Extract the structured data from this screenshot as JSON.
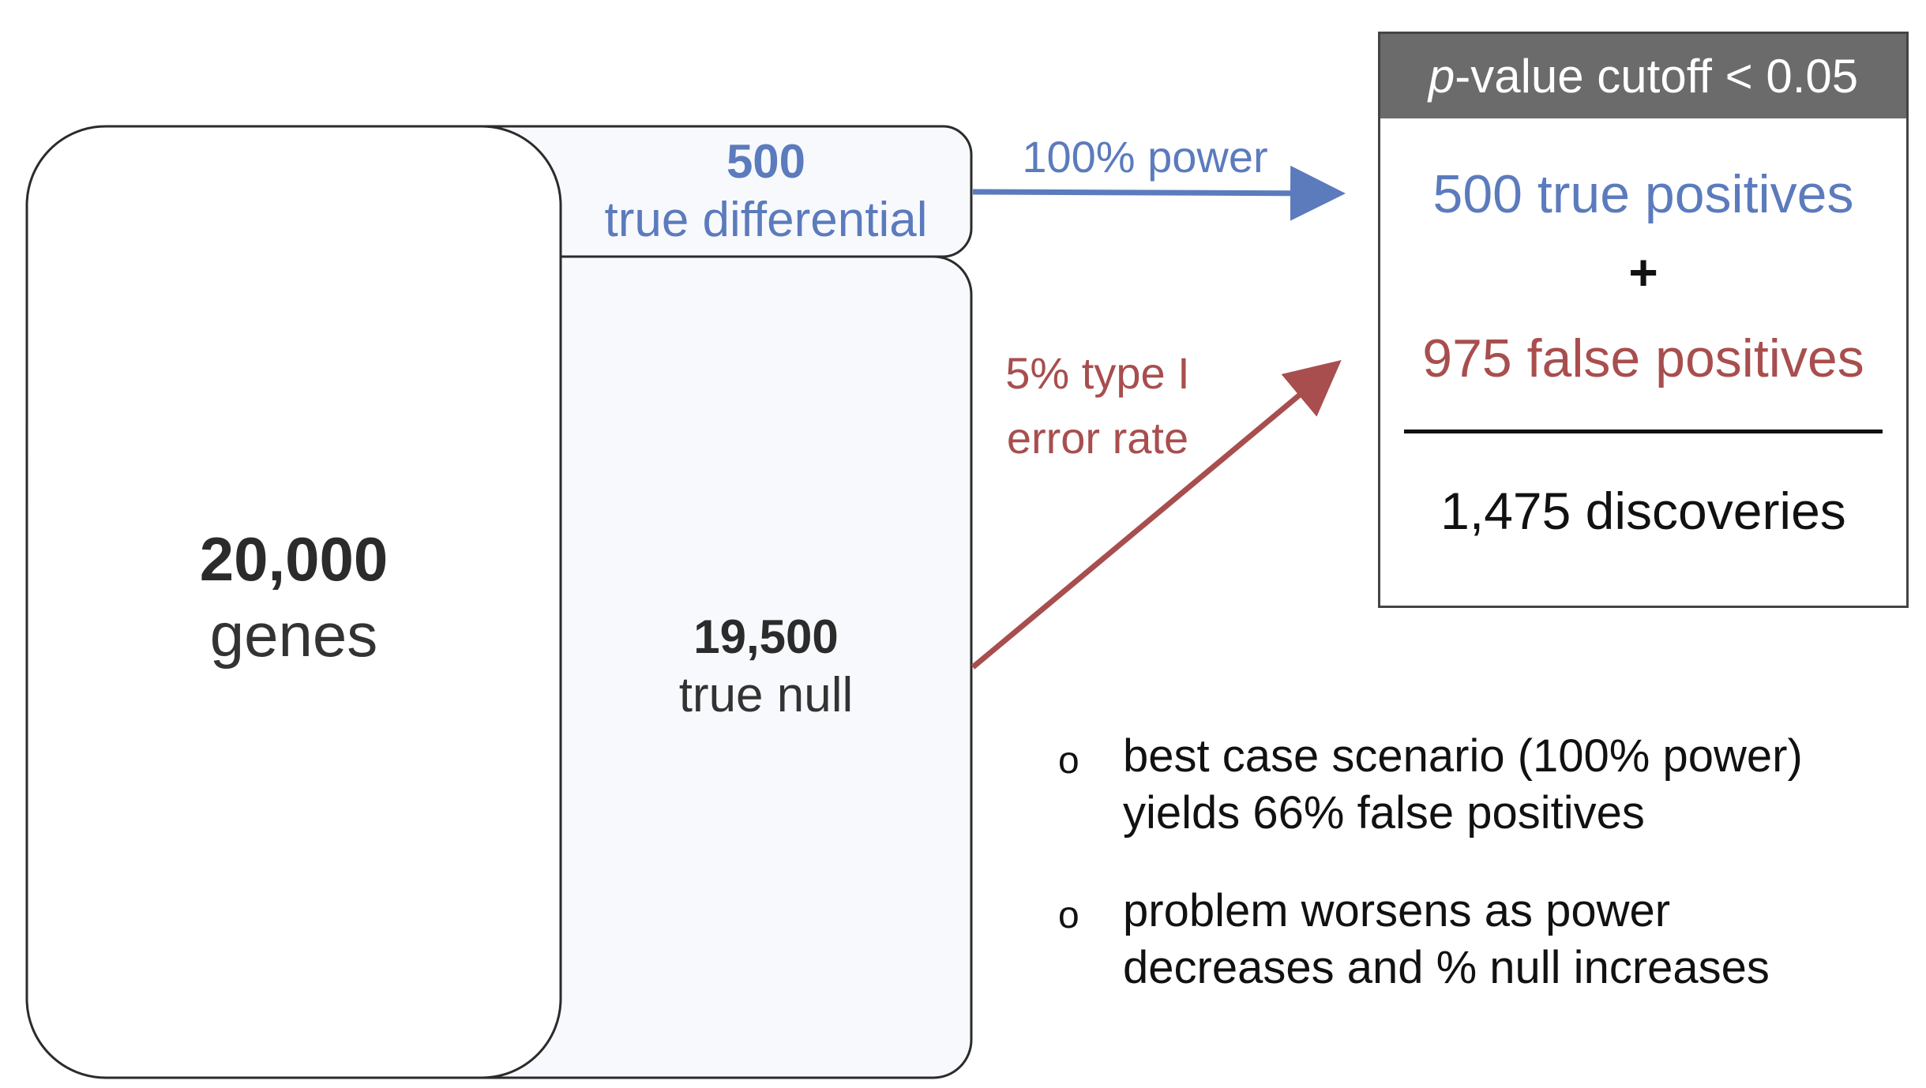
{
  "genes": {
    "count": "20,000",
    "unit": "genes"
  },
  "true_differential": {
    "count": "500",
    "unit": "true differential"
  },
  "true_null": {
    "count": "19,500",
    "unit": "true null"
  },
  "arrows": {
    "power_label": "100% power",
    "error_label_line1": "5% type I",
    "error_label_line2": "error rate"
  },
  "result_box": {
    "header_italic": "p",
    "header_rest": "-value cutoff < 0.05",
    "true_positives": "500 true positives",
    "plus": "+",
    "false_positives": "975 false positives",
    "discoveries": "1,475 discoveries"
  },
  "bullets": [
    {
      "marker": "o",
      "line1": "best case scenario (100% power)",
      "line2": "yields 66% false positives"
    },
    {
      "marker": "o",
      "line1": "problem worsens as power",
      "line2": "decreases and % null increases"
    }
  ],
  "colors": {
    "blue": "#5b7bbd",
    "red": "#a84e4e",
    "header_gray": "#6b6b6b",
    "panel_fill": "#f8f9fd"
  }
}
